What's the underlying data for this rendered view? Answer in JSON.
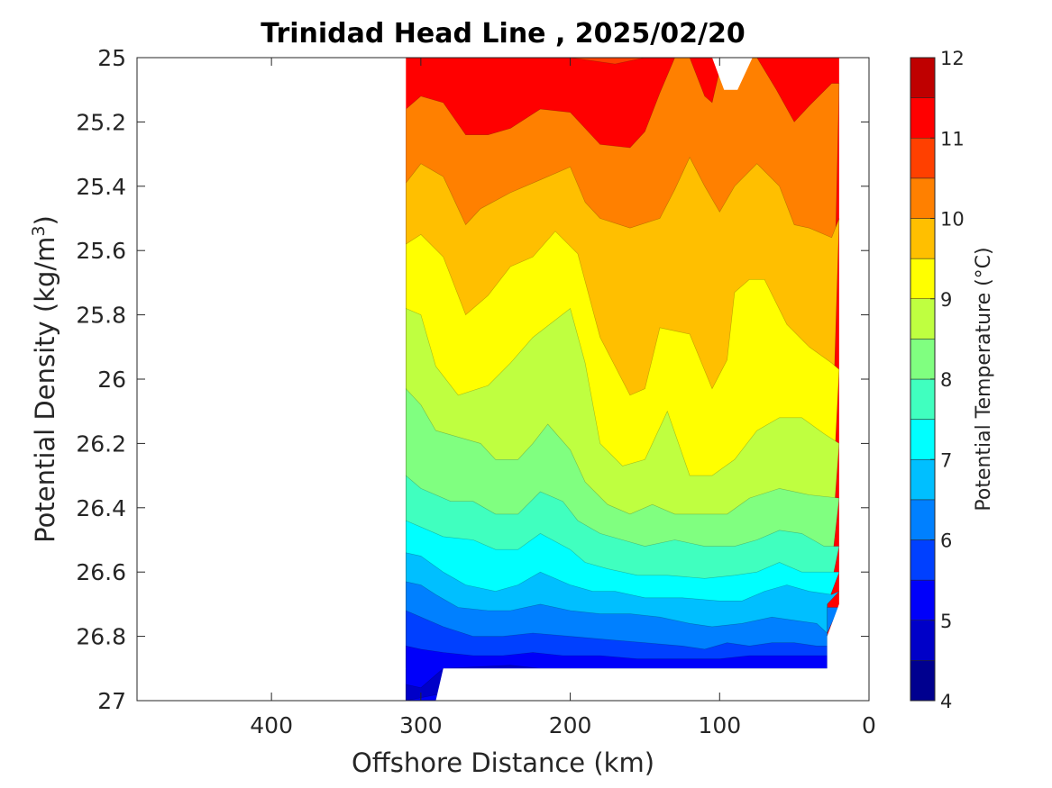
{
  "chart_data": {
    "type": "contourf",
    "title": "Trinidad Head Line , 2025/02/20",
    "xlabel": "Offshore Distance (km)",
    "ylabel_main": "Potential Density (kg/m",
    "ylabel_sup": "3",
    "ylabel_close": ")",
    "xlim": [
      490,
      0
    ],
    "ylim": [
      25,
      27
    ],
    "x_ticks": [
      400,
      300,
      200,
      100,
      0
    ],
    "y_ticks": [
      25,
      25.2,
      25.4,
      25.6,
      25.8,
      26,
      26.2,
      26.4,
      26.6,
      26.8,
      27
    ],
    "y_tick_labels": [
      "25",
      "25.2",
      "25.4",
      "25.6",
      "25.8",
      "26",
      "26.2",
      "26.4",
      "26.6",
      "26.8",
      "27"
    ],
    "x_tick_labels": [
      "400",
      "300",
      "200",
      "100",
      "0"
    ],
    "colorbar": {
      "label": "Potential Temperature (°C)",
      "levels": [
        4,
        4.5,
        5,
        5.5,
        6,
        6.5,
        7,
        7.5,
        8,
        8.5,
        9,
        9.5,
        10,
        10.5,
        11,
        11.5,
        12
      ],
      "tick_values": [
        4,
        5,
        6,
        7,
        8,
        9,
        10,
        11,
        12
      ],
      "tick_labels": [
        "4",
        "5",
        "6",
        "7",
        "8",
        "9",
        "10",
        "11",
        "12"
      ],
      "colors": [
        "#00008f",
        "#0000c8",
        "#0000fa",
        "#0040ff",
        "#0080ff",
        "#00bfff",
        "#00ffff",
        "#40ffbf",
        "#80ff80",
        "#bfff40",
        "#ffff00",
        "#ffbf00",
        "#ff8000",
        "#ff4000",
        "#ff0000",
        "#bf0000"
      ]
    },
    "data_x_range_km": [
      310,
      20
    ],
    "contours": [
      {
        "level": 12.0,
        "value": 11.2,
        "points": [
          [
            270,
            25.0
          ],
          [
            260,
            24.99
          ],
          [
            240,
            25.0
          ]
        ]
      },
      {
        "level": 11.0,
        "value": 10.75,
        "points": [
          [
            310,
            25.0
          ],
          [
            280,
            25.0
          ],
          [
            250,
            25.0
          ],
          [
            230,
            25.0
          ],
          [
            200,
            25.0
          ],
          [
            170,
            25.02
          ],
          [
            150,
            25.0
          ]
        ]
      },
      {
        "level": 10.5,
        "value": 10.25,
        "points": [
          [
            310,
            25.16
          ],
          [
            300,
            25.12
          ],
          [
            285,
            25.14
          ],
          [
            270,
            25.24
          ],
          [
            255,
            25.24
          ],
          [
            240,
            25.22
          ],
          [
            220,
            25.16
          ],
          [
            200,
            25.17
          ],
          [
            180,
            25.27
          ],
          [
            160,
            25.28
          ],
          [
            150,
            25.23
          ],
          [
            140,
            25.11
          ],
          [
            130,
            25.0
          ],
          [
            120,
            25.0
          ],
          [
            110,
            25.12
          ],
          [
            105,
            25.14
          ],
          [
            98,
            25.0
          ],
          [
            75,
            25.0
          ],
          [
            62,
            25.1
          ],
          [
            50,
            25.2
          ],
          [
            40,
            25.15
          ],
          [
            25,
            25.08
          ],
          [
            20,
            25.08
          ]
        ]
      },
      {
        "level": 10.0,
        "value": 9.75,
        "points": [
          [
            310,
            25.39
          ],
          [
            300,
            25.33
          ],
          [
            285,
            25.37
          ],
          [
            270,
            25.52
          ],
          [
            260,
            25.47
          ],
          [
            240,
            25.42
          ],
          [
            220,
            25.38
          ],
          [
            200,
            25.34
          ],
          [
            190,
            25.45
          ],
          [
            180,
            25.5
          ],
          [
            160,
            25.53
          ],
          [
            140,
            25.5
          ],
          [
            130,
            25.41
          ],
          [
            120,
            25.31
          ],
          [
            110,
            25.4
          ],
          [
            100,
            25.48
          ],
          [
            90,
            25.4
          ],
          [
            75,
            25.33
          ],
          [
            60,
            25.4
          ],
          [
            50,
            25.52
          ],
          [
            40,
            25.53
          ],
          [
            25,
            25.56
          ],
          [
            20,
            25.5
          ]
        ]
      },
      {
        "level": 9.5,
        "value": 9.25,
        "points": [
          [
            310,
            25.58
          ],
          [
            300,
            25.55
          ],
          [
            285,
            25.62
          ],
          [
            270,
            25.8
          ],
          [
            255,
            25.74
          ],
          [
            240,
            25.65
          ],
          [
            225,
            25.62
          ],
          [
            210,
            25.54
          ],
          [
            195,
            25.61
          ],
          [
            180,
            25.87
          ],
          [
            160,
            26.05
          ],
          [
            150,
            26.03
          ],
          [
            140,
            25.84
          ],
          [
            120,
            25.86
          ],
          [
            105,
            26.03
          ],
          [
            95,
            25.94
          ],
          [
            90,
            25.73
          ],
          [
            80,
            25.69
          ],
          [
            70,
            25.69
          ],
          [
            55,
            25.83
          ],
          [
            40,
            25.9
          ],
          [
            25,
            25.95
          ],
          [
            20,
            25.97
          ]
        ]
      },
      {
        "level": 9.0,
        "value": 8.75,
        "points": [
          [
            310,
            25.78
          ],
          [
            300,
            25.8
          ],
          [
            290,
            25.96
          ],
          [
            275,
            26.05
          ],
          [
            255,
            26.02
          ],
          [
            240,
            25.95
          ],
          [
            225,
            25.87
          ],
          [
            200,
            25.78
          ],
          [
            190,
            25.95
          ],
          [
            180,
            26.2
          ],
          [
            165,
            26.27
          ],
          [
            150,
            26.25
          ],
          [
            135,
            26.1
          ],
          [
            120,
            26.3
          ],
          [
            105,
            26.3
          ],
          [
            90,
            26.25
          ],
          [
            75,
            26.16
          ],
          [
            60,
            26.12
          ],
          [
            45,
            26.12
          ],
          [
            30,
            26.17
          ],
          [
            20,
            26.2
          ]
        ]
      },
      {
        "level": 8.5,
        "value": 8.25,
        "points": [
          [
            310,
            26.03
          ],
          [
            300,
            26.08
          ],
          [
            290,
            26.16
          ],
          [
            275,
            26.18
          ],
          [
            260,
            26.2
          ],
          [
            250,
            26.25
          ],
          [
            235,
            26.25
          ],
          [
            225,
            26.2
          ],
          [
            215,
            26.14
          ],
          [
            200,
            26.22
          ],
          [
            190,
            26.32
          ],
          [
            175,
            26.39
          ],
          [
            160,
            26.42
          ],
          [
            145,
            26.39
          ],
          [
            130,
            26.42
          ],
          [
            110,
            26.42
          ],
          [
            95,
            26.42
          ],
          [
            80,
            26.37
          ],
          [
            60,
            26.34
          ],
          [
            40,
            26.36
          ],
          [
            20,
            26.37
          ]
        ]
      },
      {
        "level": 8.0,
        "value": 7.75,
        "points": [
          [
            310,
            26.3
          ],
          [
            300,
            26.34
          ],
          [
            280,
            26.38
          ],
          [
            265,
            26.38
          ],
          [
            250,
            26.42
          ],
          [
            235,
            26.42
          ],
          [
            220,
            26.35
          ],
          [
            205,
            26.38
          ],
          [
            195,
            26.44
          ],
          [
            180,
            26.48
          ],
          [
            165,
            26.5
          ],
          [
            150,
            26.52
          ],
          [
            130,
            26.5
          ],
          [
            110,
            26.52
          ],
          [
            90,
            26.52
          ],
          [
            75,
            26.5
          ],
          [
            60,
            26.47
          ],
          [
            45,
            26.48
          ],
          [
            30,
            26.52
          ],
          [
            20,
            26.52
          ]
        ]
      },
      {
        "level": 7.5,
        "value": 7.25,
        "points": [
          [
            310,
            26.44
          ],
          [
            300,
            26.46
          ],
          [
            285,
            26.49
          ],
          [
            265,
            26.5
          ],
          [
            250,
            26.53
          ],
          [
            235,
            26.53
          ],
          [
            220,
            26.48
          ],
          [
            200,
            26.53
          ],
          [
            190,
            26.57
          ],
          [
            175,
            26.59
          ],
          [
            155,
            26.61
          ],
          [
            135,
            26.61
          ],
          [
            110,
            26.62
          ],
          [
            90,
            26.61
          ],
          [
            75,
            26.6
          ],
          [
            60,
            26.57
          ],
          [
            45,
            26.6
          ],
          [
            25,
            26.6
          ],
          [
            20,
            26.6
          ]
        ]
      },
      {
        "level": 7.0,
        "value": 6.75,
        "points": [
          [
            310,
            26.54
          ],
          [
            300,
            26.55
          ],
          [
            285,
            26.6
          ],
          [
            270,
            26.64
          ],
          [
            250,
            26.66
          ],
          [
            235,
            26.64
          ],
          [
            220,
            26.6
          ],
          [
            200,
            26.64
          ],
          [
            185,
            26.66
          ],
          [
            170,
            26.66
          ],
          [
            150,
            26.68
          ],
          [
            125,
            26.68
          ],
          [
            100,
            26.69
          ],
          [
            85,
            26.69
          ],
          [
            70,
            26.66
          ],
          [
            55,
            26.64
          ],
          [
            40,
            26.66
          ],
          [
            25,
            26.67
          ],
          [
            20,
            26.66
          ]
        ]
      },
      {
        "level": 6.5,
        "value": 6.25,
        "points": [
          [
            310,
            26.63
          ],
          [
            300,
            26.64
          ],
          [
            290,
            26.67
          ],
          [
            275,
            26.71
          ],
          [
            255,
            26.72
          ],
          [
            240,
            26.72
          ],
          [
            220,
            26.7
          ],
          [
            200,
            26.72
          ],
          [
            180,
            26.73
          ],
          [
            160,
            26.73
          ],
          [
            140,
            26.74
          ],
          [
            120,
            26.76
          ],
          [
            105,
            26.77
          ],
          [
            85,
            26.76
          ],
          [
            65,
            26.74
          ],
          [
            50,
            26.75
          ],
          [
            35,
            26.76
          ],
          [
            28,
            26.79
          ],
          [
            20,
            26.71
          ]
        ]
      },
      {
        "level": 6.0,
        "value": 5.75,
        "points": [
          [
            310,
            26.72
          ],
          [
            300,
            26.74
          ],
          [
            285,
            26.77
          ],
          [
            265,
            26.8
          ],
          [
            245,
            26.8
          ],
          [
            225,
            26.79
          ],
          [
            200,
            26.8
          ],
          [
            175,
            26.81
          ],
          [
            150,
            26.82
          ],
          [
            125,
            26.83
          ],
          [
            110,
            26.84
          ],
          [
            95,
            26.82
          ],
          [
            80,
            26.83
          ],
          [
            65,
            26.82
          ],
          [
            50,
            26.82
          ],
          [
            35,
            26.83
          ],
          [
            28,
            26.83
          ]
        ]
      },
      {
        "level": 5.5,
        "value": 5.25,
        "points": [
          [
            310,
            26.83
          ],
          [
            300,
            26.84
          ],
          [
            285,
            26.85
          ],
          [
            265,
            26.86
          ],
          [
            245,
            26.86
          ],
          [
            225,
            26.85
          ],
          [
            205,
            26.86
          ],
          [
            180,
            26.86
          ],
          [
            155,
            26.87
          ],
          [
            130,
            26.87
          ],
          [
            100,
            26.87
          ],
          [
            80,
            26.86
          ],
          [
            55,
            26.86
          ],
          [
            35,
            26.86
          ],
          [
            28,
            26.86
          ]
        ]
      },
      {
        "level": 5.0,
        "value": 4.75,
        "points": [
          [
            310,
            26.95
          ],
          [
            300,
            26.96
          ],
          [
            290,
            26.92
          ],
          [
            285,
            26.9
          ],
          [
            240,
            26.89
          ],
          [
            220,
            26.9
          ],
          [
            200,
            26.9
          ]
        ]
      }
    ]
  }
}
